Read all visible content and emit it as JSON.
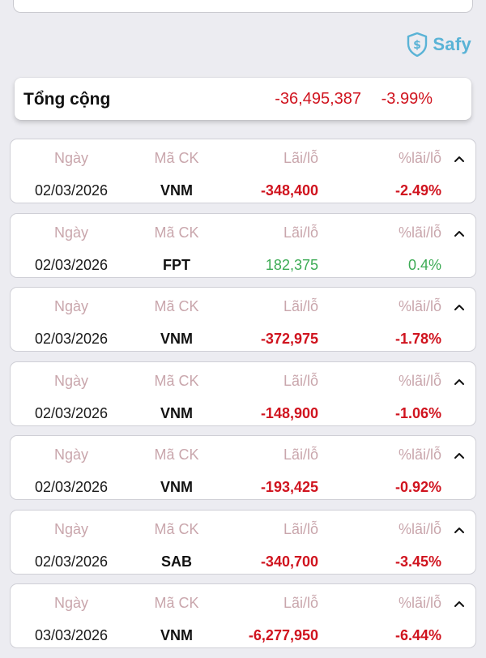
{
  "brand": {
    "name": "Safy",
    "icon": "shield-dollar-icon",
    "color": "#5ab3d6"
  },
  "summary": {
    "label": "Tổng cộng",
    "amount": "-36,495,387",
    "percent": "-3.99%"
  },
  "columns": {
    "date": "Ngày",
    "code": "Mã CK",
    "pnl": "Lãi/lỗ",
    "pnl_pct": "%lãi/lỗ"
  },
  "colors": {
    "negative": "#d0141f",
    "positive": "#3dab55",
    "label": "#c9a6ac"
  },
  "rows": [
    {
      "date": "02/03/2026",
      "code": "VNM",
      "pnl": "-348,400",
      "pnl_pct": "-2.49%",
      "sign": "neg"
    },
    {
      "date": "02/03/2026",
      "code": "FPT",
      "pnl": "182,375",
      "pnl_pct": "0.4%",
      "sign": "pos"
    },
    {
      "date": "02/03/2026",
      "code": "VNM",
      "pnl": "-372,975",
      "pnl_pct": "-1.78%",
      "sign": "neg"
    },
    {
      "date": "02/03/2026",
      "code": "VNM",
      "pnl": "-148,900",
      "pnl_pct": "-1.06%",
      "sign": "neg"
    },
    {
      "date": "02/03/2026",
      "code": "VNM",
      "pnl": "-193,425",
      "pnl_pct": "-0.92%",
      "sign": "neg"
    },
    {
      "date": "02/03/2026",
      "code": "SAB",
      "pnl": "-340,700",
      "pnl_pct": "-3.45%",
      "sign": "neg"
    },
    {
      "date": "03/03/2026",
      "code": "VNM",
      "pnl": "-6,277,950",
      "pnl_pct": "-6.44%",
      "sign": "neg"
    }
  ]
}
